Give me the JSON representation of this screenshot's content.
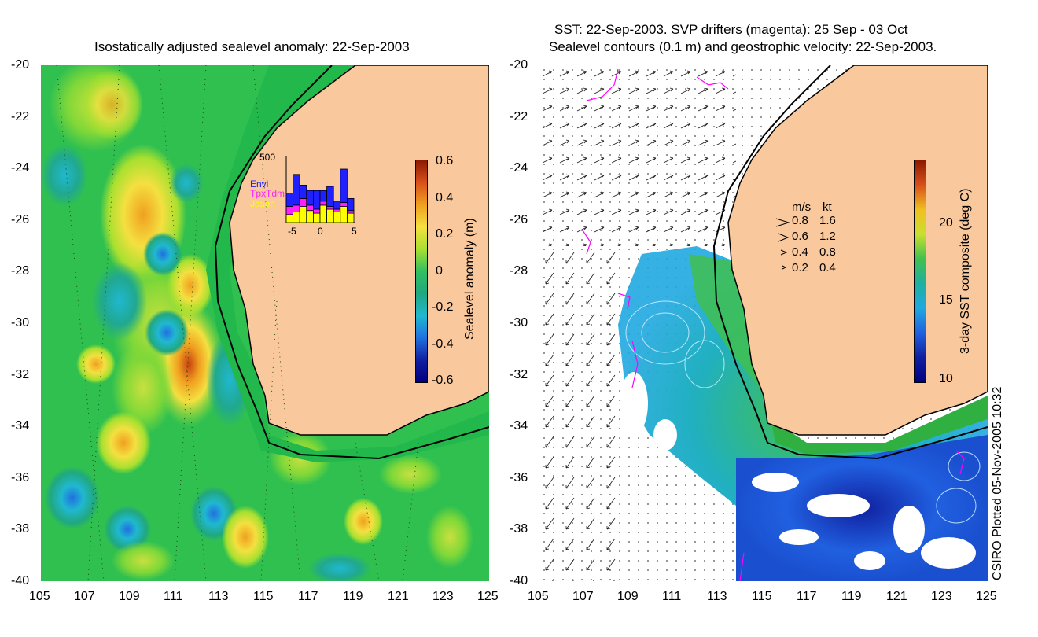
{
  "left_panel": {
    "title": "Isostatically adjusted sealevel anomaly: 22-Sep-2003",
    "colorbar": {
      "label": "Sealevel anomaly (m)",
      "ticks": [
        "0.6",
        "0.4",
        "0.2",
        "0",
        "-0.2",
        "-0.4",
        "-0.6"
      ],
      "colors": [
        "#8b1a00",
        "#d8501a",
        "#f0a020",
        "#f4e040",
        "#a8e030",
        "#30c060",
        "#20a880",
        "#20b8d0",
        "#2070e0",
        "#1020a0",
        "#000080"
      ]
    },
    "inset": {
      "ymax_label": "500",
      "legend": [
        "Envi",
        "TpxTdm",
        "Jason"
      ],
      "legend_colors": [
        "#2020ff",
        "#ff20ff",
        "#ffff00"
      ],
      "x_ticks": [
        "-5",
        "0",
        "5"
      ],
      "bars": [
        {
          "day": -5,
          "jason": 60,
          "tpx": 60,
          "envi": 100
        },
        {
          "day": -4,
          "jason": 80,
          "tpx": 50,
          "envi": 230
        },
        {
          "day": -3,
          "jason": 120,
          "tpx": 60,
          "envi": 100
        },
        {
          "day": -2,
          "jason": 90,
          "tpx": 40,
          "envi": 110
        },
        {
          "day": -1,
          "jason": 70,
          "tpx": 30,
          "envi": 140
        },
        {
          "day": 0,
          "jason": 130,
          "tpx": 30,
          "envi": 80
        },
        {
          "day": 1,
          "jason": 100,
          "tpx": 20,
          "envi": 150
        },
        {
          "day": 2,
          "jason": 80,
          "tpx": 20,
          "envi": 60
        },
        {
          "day": 3,
          "jason": 120,
          "tpx": 30,
          "envi": 250
        },
        {
          "day": 4,
          "jason": 70,
          "tpx": 20,
          "envi": 90
        }
      ]
    }
  },
  "right_panel": {
    "title_line1": "SST: 22-Sep-2003. SVP drifters (magenta): 25 Sep - 03 Oct",
    "title_line2": "Sealevel contours (0.1 m) and geostrophic velocity: 22-Sep-2003.",
    "colorbar": {
      "label": "3-day SST composite (deg C)",
      "ticks": [
        "20",
        "15",
        "10"
      ],
      "colors": [
        "#8b1a00",
        "#d8501a",
        "#f0c020",
        "#c8e030",
        "#40c050",
        "#20b0a0",
        "#20a8e0",
        "#2060e0",
        "#1020a0",
        "#000080"
      ]
    },
    "speed_legend": {
      "header_ms": "m/s",
      "header_kt": "kt",
      "rows": [
        [
          "0.8",
          "1.6"
        ],
        [
          "0.6",
          "1.2"
        ],
        [
          "0.4",
          "0.8"
        ],
        [
          "0.2",
          "0.4"
        ]
      ]
    }
  },
  "axes": {
    "x_ticks": [
      "105",
      "107",
      "109",
      "111",
      "113",
      "115",
      "117",
      "119",
      "121",
      "123",
      "125"
    ],
    "y_ticks": [
      "-20",
      "-22",
      "-24",
      "-26",
      "-28",
      "-30",
      "-32",
      "-34",
      "-36",
      "-38",
      "-40"
    ]
  },
  "credit": "CSIRO Plotted 05-Nov-2005 10:32",
  "colors": {
    "land": "#f9c89c",
    "shelf": "#22b84c",
    "ocean_left": "#30c050",
    "coast": "#000000",
    "drifter": "#ff00ff"
  }
}
